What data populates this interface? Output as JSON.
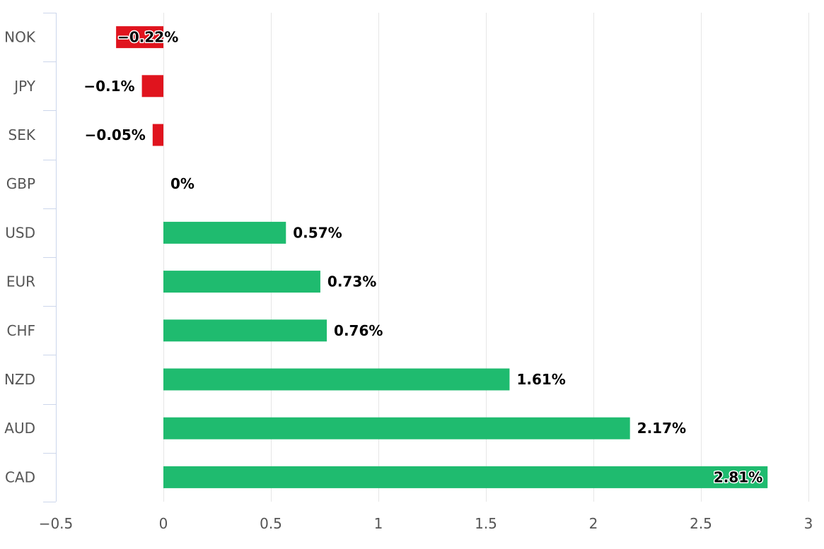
{
  "chart_data": {
    "type": "bar",
    "orientation": "horizontal",
    "title": "",
    "xlabel": "",
    "ylabel": "",
    "categories": [
      "NOK",
      "JPY",
      "SEK",
      "GBP",
      "USD",
      "EUR",
      "CHF",
      "NZD",
      "AUD",
      "CAD"
    ],
    "values": [
      -0.22,
      -0.1,
      -0.05,
      0,
      0.57,
      0.73,
      0.76,
      1.61,
      2.17,
      2.81
    ],
    "data_labels": [
      "−0.22%",
      "−0.1%",
      "−0.05%",
      "0%",
      "0.57%",
      "0.73%",
      "0.76%",
      "1.61%",
      "2.17%",
      "2.81%"
    ],
    "xlim": [
      -0.5,
      3
    ],
    "x_ticks": [
      -0.5,
      0,
      0.5,
      1,
      1.5,
      2,
      2.5,
      3
    ],
    "x_tick_labels": [
      "−0.5",
      "0",
      "0.5",
      "1",
      "1.5",
      "2",
      "2.5",
      "3"
    ],
    "grid": "vertical",
    "legend": "none",
    "colors": {
      "positive": "#1fbb6f",
      "negative": "#e0141e",
      "grid": "#e6e6e6",
      "axis": "#ccd6eb",
      "text": "#555555",
      "label": "#000000"
    }
  }
}
